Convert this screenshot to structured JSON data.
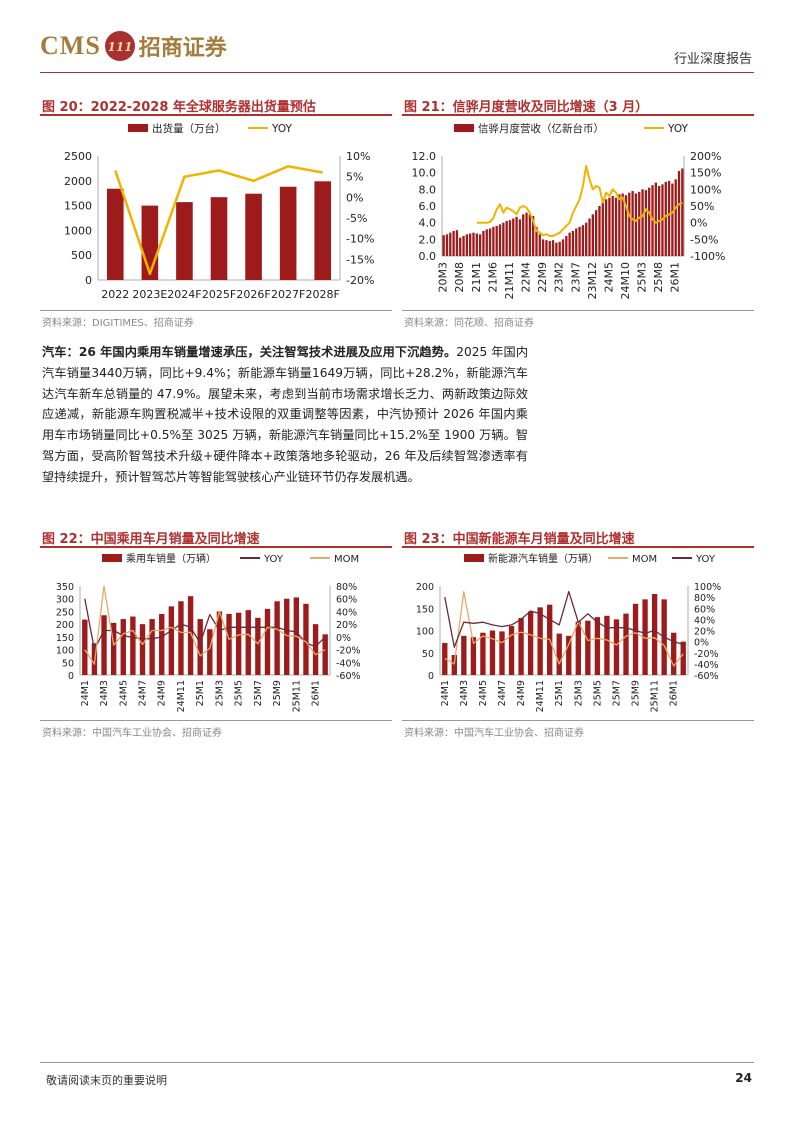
{
  "header": {
    "logo_text": "CMS",
    "logo_cn": "招商证券",
    "doc_type": "行业深度报告"
  },
  "colors": {
    "bar": "#9e1b1b",
    "line_yoy": "#f0b400",
    "line_yoy_dark": "#6b2a3a",
    "line_mom": "#e8a86a",
    "accent": "#b03030"
  },
  "fig20": {
    "title": "图 20：2022-2028 年全球服务器出货量预估",
    "source": "资料来源：DIGITIMES、招商证券"
  },
  "fig21": {
    "title": "图 21：信骅月度营收及同比增速（3 月）",
    "source": "资料来源：同花顺、招商证券"
  },
  "fig22": {
    "title": "图 22：中国乘用车月销量及同比增速",
    "source": "资料来源：中国汽车工业协会、招商证券"
  },
  "fig23": {
    "title": "图 23：中国新能源车月销量及同比增速",
    "source": "资料来源：中国汽车工业协会、招商证券"
  },
  "paragraph": {
    "lead": "汽车：26 年国内乘用车销量增速承压，关注智驾技术进展及应用下沉趋势。",
    "body": "2025 年国内汽车销量3440万辆，同比+9.4%；新能源车销量1649万辆，同比+28.2%，新能源汽车达汽车新车总销量的 47.9%。展望未来，考虑到当前市场需求增长乏力、两新政策边际效应递减，新能源车购置税减半+技术设限的双重调整等因素，中汽协预计 2026 年国内乘用车市场销量同比+0.5%至 3025 万辆，新能源汽车销量同比+15.2%至 1900 万辆。智驾方面，受高阶智驾技术升级+硬件降本+政策落地多轮驱动，26 年及后续智驾渗透率有望持续提升，预计智驾芯片等智能驾驶核心产业链环节仍存发展机遇。"
  },
  "footer": {
    "note": "敬请阅读末页的重要说明",
    "page": "24"
  },
  "chart_data": [
    {
      "id": "fig20",
      "type": "bar",
      "categories": [
        "2022",
        "2023E",
        "2024F",
        "2025F",
        "2026F",
        "2027F",
        "2028F"
      ],
      "series": [
        {
          "name": "出货量（万台）",
          "type": "bar",
          "axis": "left",
          "values": [
            1840,
            1500,
            1570,
            1670,
            1740,
            1880,
            1990
          ]
        },
        {
          "name": "YOY",
          "type": "line",
          "axis": "right",
          "values": [
            6.5,
            -18.5,
            5,
            6.5,
            4,
            7.5,
            6
          ]
        }
      ],
      "ylim_left": [
        0,
        2500
      ],
      "yticks_left": [
        0,
        500,
        1000,
        1500,
        2000,
        2500
      ],
      "ylim_right": [
        -20,
        10
      ],
      "yticks_right": [
        "-20%",
        "-15%",
        "-10%",
        "-5%",
        "0%",
        "5%",
        "10%"
      ],
      "legend": "top"
    },
    {
      "id": "fig21",
      "type": "bar",
      "categories": [
        "20M3",
        "20M4",
        "20M5",
        "20M6",
        "20M7",
        "20M8",
        "20M9",
        "20M10",
        "20M11",
        "20M12",
        "21M1",
        "21M2",
        "21M3",
        "21M4",
        "21M5",
        "21M6",
        "21M7",
        "21M8",
        "21M9",
        "21M10",
        "21M11",
        "21M12",
        "22M1",
        "22M2",
        "22M3",
        "22M4",
        "22M5",
        "22M6",
        "22M7",
        "22M8",
        "22M9",
        "22M10",
        "22M11",
        "22M12",
        "23M1",
        "23M2",
        "23M3",
        "23M4",
        "23M5",
        "23M6",
        "23M7",
        "23M8",
        "23M9",
        "23M10",
        "23M11",
        "23M12",
        "24M1",
        "24M2",
        "24M3",
        "24M4",
        "24M5",
        "24M6",
        "24M7",
        "24M8",
        "24M9",
        "24M10",
        "24M11",
        "24M12",
        "25M1",
        "25M2",
        "25M3",
        "25M4",
        "25M5",
        "25M6",
        "25M7",
        "25M8",
        "25M9",
        "25M10",
        "25M11",
        "25M12",
        "26M1",
        "26M2",
        "26M3"
      ],
      "x_tick_labels": [
        "20M3",
        "20M8",
        "21M1",
        "21M6",
        "21M11",
        "22M4",
        "22M9",
        "23M2",
        "23M7",
        "23M12",
        "24M5",
        "24M10",
        "25M3",
        "25M8",
        "26M1"
      ],
      "series": [
        {
          "name": "信骅月度营收（亿新台币）",
          "type": "bar",
          "axis": "left",
          "values": [
            2.5,
            2.6,
            2.8,
            3.0,
            3.1,
            2.2,
            2.4,
            2.6,
            2.7,
            2.8,
            2.7,
            2.6,
            3.0,
            3.2,
            3.3,
            3.5,
            3.6,
            3.8,
            4.0,
            4.2,
            4.3,
            4.5,
            4.7,
            4.4,
            5.0,
            5.2,
            5.0,
            4.8,
            3.5,
            2.6,
            2.0,
            1.9,
            1.8,
            1.9,
            1.6,
            1.7,
            2.0,
            2.4,
            2.8,
            3.0,
            3.3,
            3.5,
            3.7,
            4.0,
            4.5,
            5.0,
            5.5,
            6.0,
            6.5,
            6.8,
            7.0,
            7.2,
            7.0,
            7.4,
            7.5,
            7.3,
            7.6,
            7.8,
            7.5,
            7.7,
            8.0,
            7.9,
            8.2,
            8.5,
            8.8,
            8.4,
            8.6,
            8.9,
            9.0,
            8.7,
            9.2,
            10.2,
            10.5
          ]
        },
        {
          "name": "YOY",
          "type": "line",
          "axis": "right",
          "values": [
            null,
            null,
            null,
            null,
            null,
            null,
            null,
            null,
            null,
            null,
            0,
            0,
            0,
            0,
            2,
            15,
            40,
            55,
            30,
            45,
            40,
            35,
            25,
            45,
            50,
            45,
            30,
            5,
            -25,
            -30,
            -38,
            -35,
            -40,
            -40,
            -35,
            -30,
            -20,
            -10,
            0,
            30,
            50,
            70,
            110,
            170,
            130,
            100,
            110,
            105,
            60,
            90,
            80,
            100,
            90,
            70,
            75,
            50,
            20,
            10,
            5,
            15,
            20,
            40,
            30,
            10,
            0,
            5,
            10,
            20,
            25,
            30,
            45,
            55,
            60
          ]
        }
      ],
      "ylim_left": [
        0,
        12
      ],
      "yticks_left": [
        "0.0",
        "2.0",
        "4.0",
        "6.0",
        "8.0",
        "10.0",
        "12.0"
      ],
      "ylim_right": [
        -100,
        200
      ],
      "yticks_right": [
        "-100%",
        "-50%",
        "0%",
        "50%",
        "100%",
        "150%",
        "200%"
      ],
      "legend": "top"
    },
    {
      "id": "fig22",
      "type": "bar",
      "categories": [
        "24M1",
        "24M2",
        "24M3",
        "24M4",
        "24M5",
        "24M6",
        "24M7",
        "24M8",
        "24M9",
        "24M10",
        "24M11",
        "24M12",
        "25M1",
        "25M2",
        "25M3",
        "25M4",
        "25M5",
        "25M6",
        "25M7",
        "25M8",
        "25M9",
        "25M10",
        "25M11",
        "25M12",
        "26M1",
        "26M2"
      ],
      "x_tick_labels": [
        "24M1",
        "24M3",
        "24M5",
        "24M7",
        "24M9",
        "24M11",
        "25M1",
        "25M3",
        "25M5",
        "25M7",
        "25M9",
        "25M11",
        "26M1"
      ],
      "series": [
        {
          "name": "乘用车销量（万辆）",
          "type": "bar",
          "axis": "left",
          "values": [
            218,
            125,
            235,
            205,
            220,
            230,
            200,
            220,
            240,
            270,
            290,
            310,
            220,
            180,
            250,
            240,
            245,
            255,
            225,
            260,
            290,
            300,
            305,
            280,
            200,
            160
          ]
        },
        {
          "name": "YOY",
          "type": "line",
          "axis": "right",
          "values": [
            60,
            -20,
            10,
            10,
            2,
            -1,
            -3,
            -3,
            0,
            10,
            20,
            15,
            -10,
            35,
            10,
            15,
            15,
            15,
            15,
            15,
            15,
            10,
            8,
            -10,
            -15,
            0
          ]
        },
        {
          "name": "MOM",
          "type": "line",
          "axis": "right",
          "values": [
            -20,
            -43,
            80,
            -13,
            5,
            10,
            -12,
            10,
            10,
            15,
            7,
            7,
            -30,
            -18,
            40,
            -4,
            3,
            4,
            -11,
            15,
            12,
            2,
            1,
            -8,
            -28,
            -20
          ]
        }
      ],
      "ylim_left": [
        0,
        350
      ],
      "yticks_left": [
        0,
        50,
        100,
        150,
        200,
        250,
        300,
        350
      ],
      "ylim_right": [
        -60,
        80
      ],
      "yticks_right": [
        "-60%",
        "-40%",
        "-20%",
        "0%",
        "20%",
        "40%",
        "60%",
        "80%"
      ],
      "legend": "top"
    },
    {
      "id": "fig23",
      "type": "bar",
      "categories": [
        "24M1",
        "24M2",
        "24M3",
        "24M4",
        "24M5",
        "24M6",
        "24M7",
        "24M8",
        "24M9",
        "24M10",
        "24M11",
        "24M12",
        "25M1",
        "25M2",
        "25M3",
        "25M4",
        "25M5",
        "25M6",
        "25M7",
        "25M8",
        "25M9",
        "25M10",
        "25M11",
        "25M12",
        "26M1",
        "26M2"
      ],
      "x_tick_labels": [
        "24M1",
        "24M3",
        "24M5",
        "24M7",
        "24M9",
        "24M11",
        "25M1",
        "25M3",
        "25M5",
        "25M7",
        "25M9",
        "25M11",
        "26M1"
      ],
      "series": [
        {
          "name": "新能源汽车销量（万辆）",
          "type": "bar",
          "axis": "left",
          "values": [
            72,
            45,
            88,
            85,
            95,
            100,
            98,
            110,
            128,
            143,
            152,
            158,
            93,
            88,
            120,
            122,
            130,
            133,
            125,
            138,
            160,
            170,
            182,
            170,
            95,
            75
          ]
        },
        {
          "name": "MOM",
          "type": "line",
          "axis": "right",
          "values": [
            -30,
            -40,
            90,
            -3,
            10,
            5,
            -2,
            12,
            17,
            12,
            6,
            4,
            -40,
            -5,
            36,
            2,
            6,
            3,
            -6,
            10,
            16,
            6,
            7,
            -7,
            -44,
            -22
          ]
        },
        {
          "name": "YOY",
          "type": "line",
          "axis": "right",
          "values": [
            80,
            -10,
            35,
            33,
            35,
            30,
            27,
            30,
            40,
            55,
            50,
            40,
            30,
            90,
            35,
            50,
            35,
            25,
            25,
            25,
            20,
            15,
            20,
            8,
            0,
            -5
          ]
        }
      ],
      "ylim_left": [
        0,
        200
      ],
      "yticks_left": [
        0,
        50,
        100,
        150,
        200
      ],
      "ylim_right": [
        -60,
        100
      ],
      "yticks_right": [
        "-60%",
        "-40%",
        "-20%",
        "0%",
        "20%",
        "40%",
        "60%",
        "80%",
        "100%"
      ],
      "legend": "top"
    }
  ]
}
